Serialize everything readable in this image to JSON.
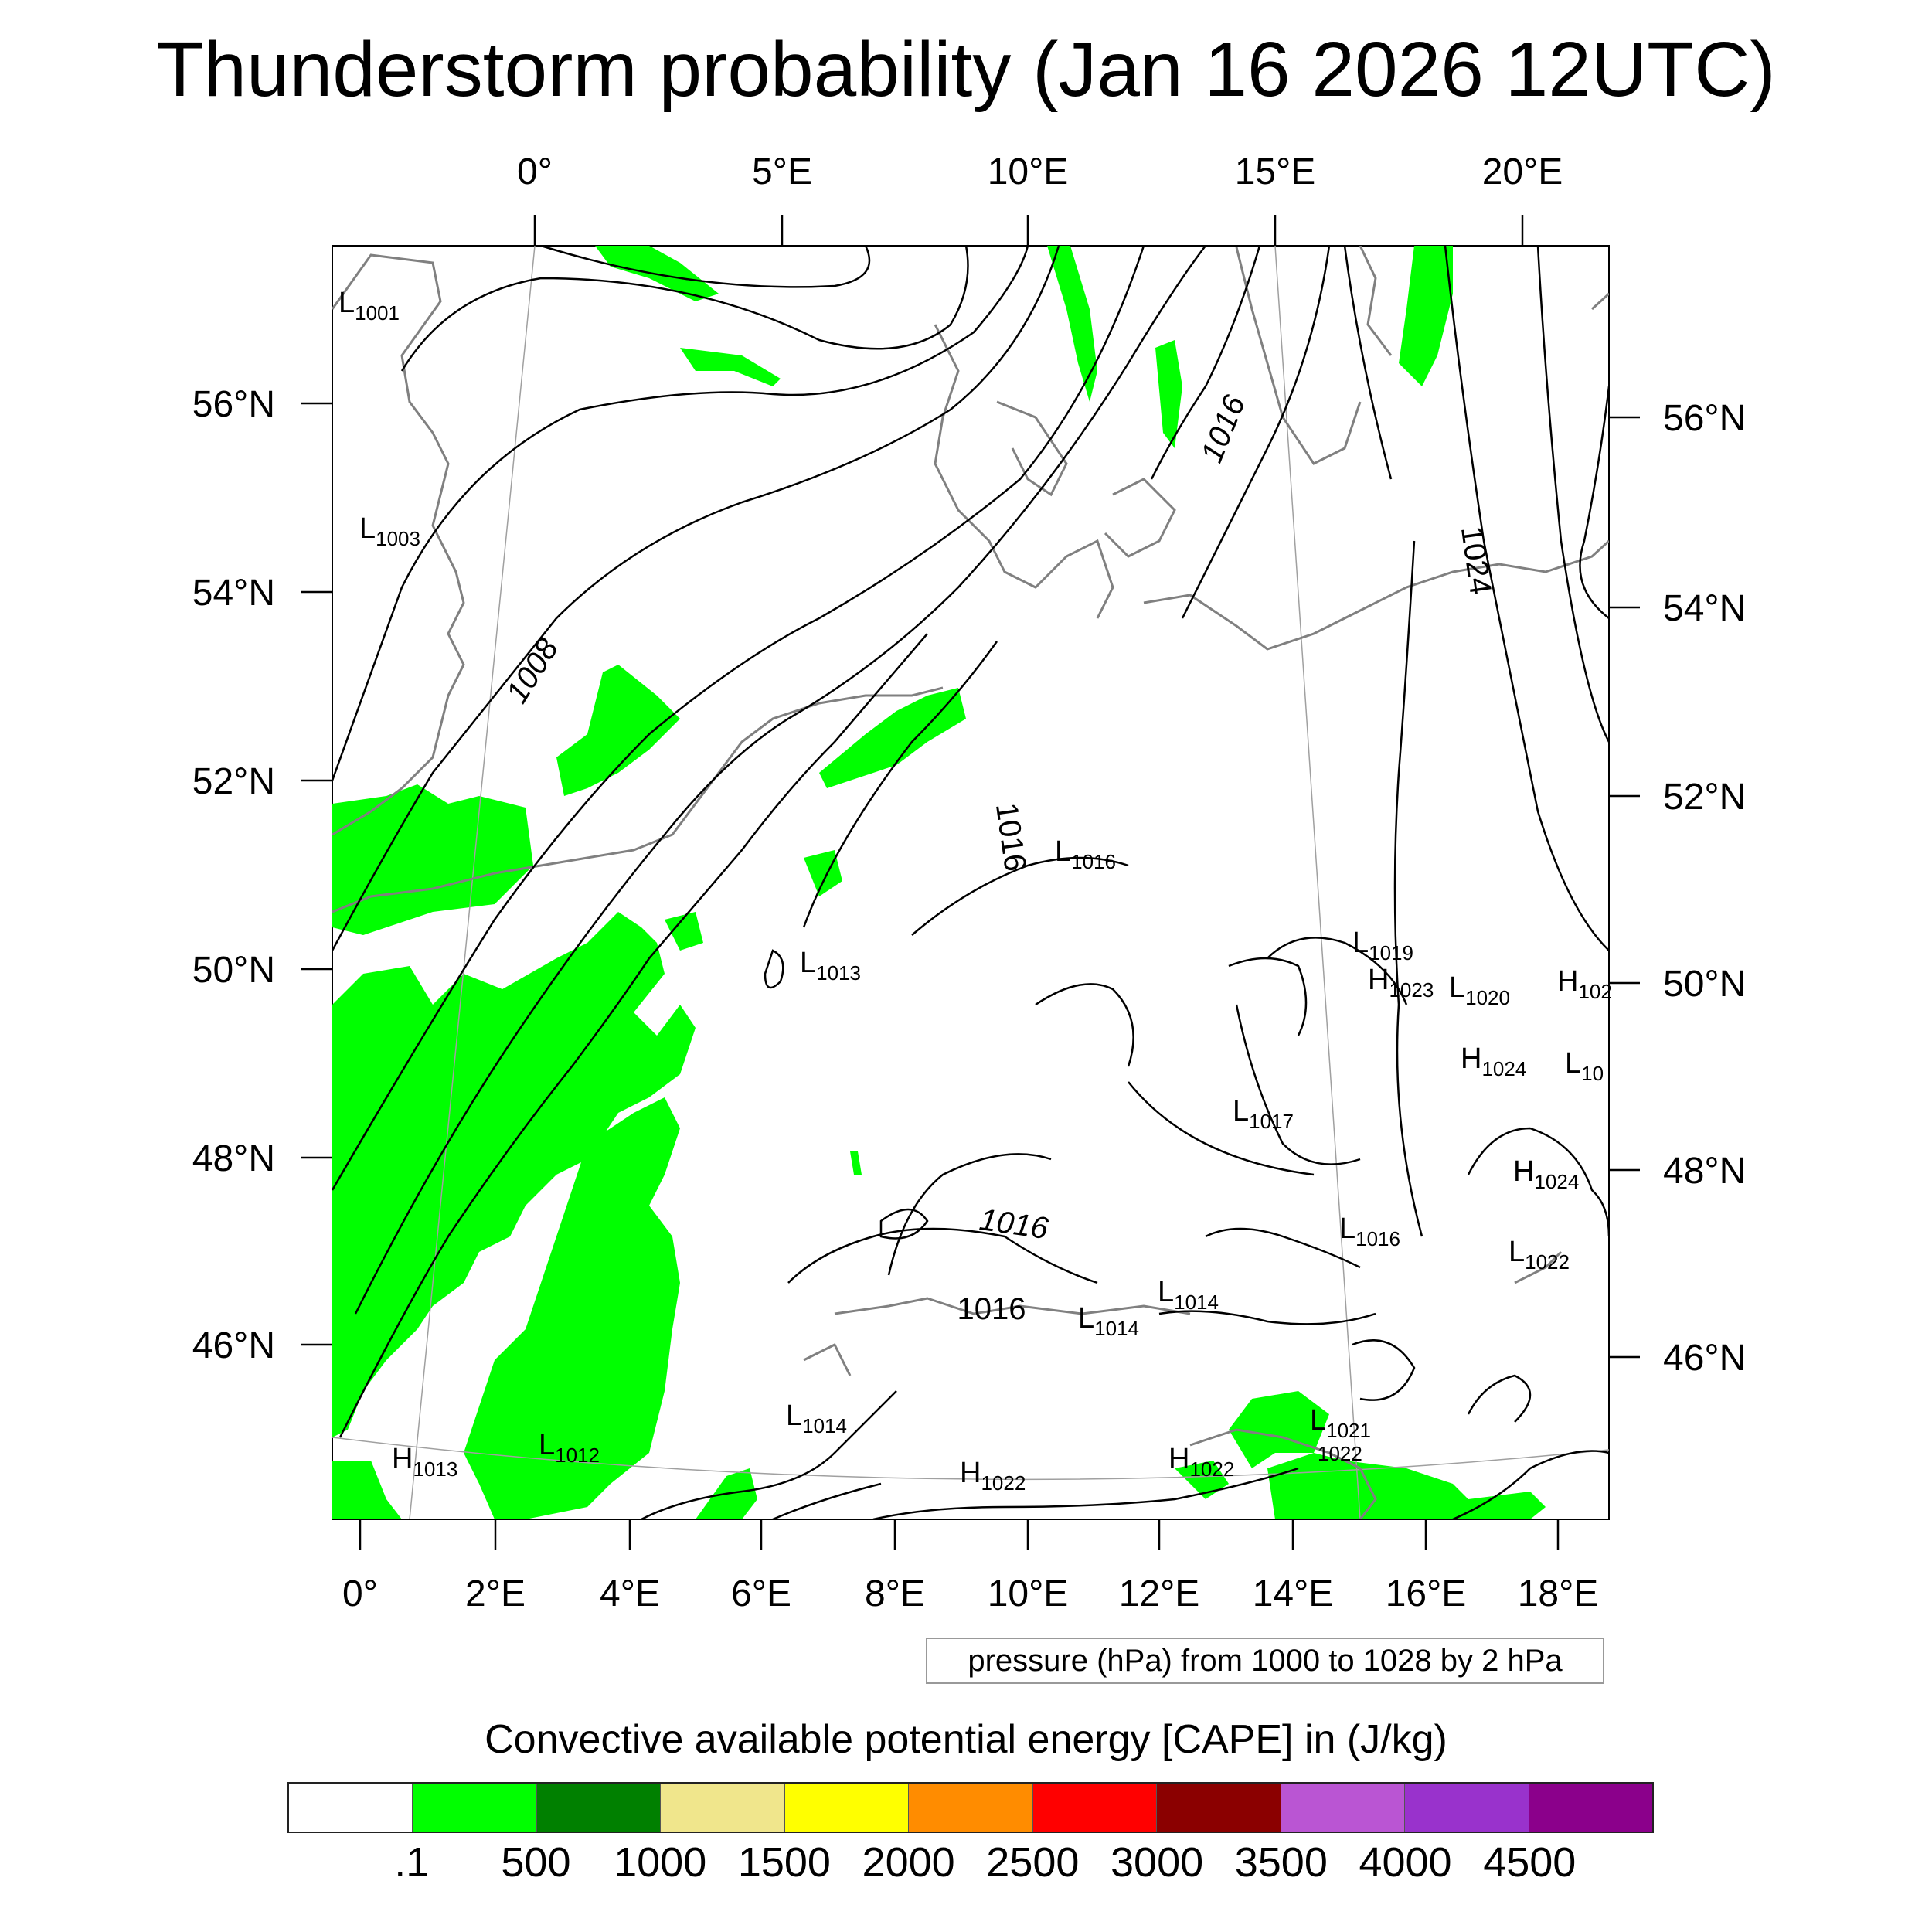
{
  "title": "Thunderstorm probability (Jan 16 2026 12UTC)",
  "map": {
    "top_lon_labels": [
      "0°",
      "5°E",
      "10°E",
      "15°E",
      "20°E"
    ],
    "left_lat_labels": [
      "56°N",
      "54°N",
      "52°N",
      "50°N",
      "48°N",
      "46°N"
    ],
    "right_lat_labels": [
      "56°N",
      "54°N",
      "52°N",
      "50°N",
      "48°N",
      "46°N"
    ],
    "bottom_lon_labels": [
      "0°",
      "2°E",
      "4°E",
      "6°E",
      "8°E",
      "10°E",
      "12°E",
      "14°E",
      "16°E",
      "18°E"
    ],
    "isobar_labels": [
      "1008",
      "1016",
      "1024",
      "1016",
      "1016",
      "1016"
    ],
    "pressure_centers": [
      {
        "type": "L",
        "value": "1001"
      },
      {
        "type": "L",
        "value": "1003"
      },
      {
        "type": "L",
        "value": "1016"
      },
      {
        "type": "L",
        "value": "1013"
      },
      {
        "type": "L",
        "value": "1019"
      },
      {
        "type": "H",
        "value": "1023"
      },
      {
        "type": "L",
        "value": "1020"
      },
      {
        "type": "H",
        "value": "102"
      },
      {
        "type": "H",
        "value": "1024"
      },
      {
        "type": "L",
        "value": "10"
      },
      {
        "type": "L",
        "value": "1017"
      },
      {
        "type": "H",
        "value": "1024"
      },
      {
        "type": "L",
        "value": "1016"
      },
      {
        "type": "L",
        "value": "1022"
      },
      {
        "type": "L",
        "value": "1014"
      },
      {
        "type": "L",
        "value": "1014"
      },
      {
        "type": "L",
        "value": "1014"
      },
      {
        "type": "L",
        "value": "1021"
      },
      {
        "type": "",
        "value": "1022"
      },
      {
        "type": "H",
        "value": "1022"
      },
      {
        "type": "H",
        "value": "1022"
      },
      {
        "type": "H",
        "value": "1013"
      },
      {
        "type": "L",
        "value": "1012"
      }
    ],
    "colors": {
      "cape_fill": "#00ff00",
      "isobar": "#000000",
      "coastline": "#808080",
      "grid": "#a0a0a0"
    }
  },
  "note": "pressure (hPa) from 1000 to 1028 by 2 hPa",
  "colorbar": {
    "title": "Convective available potential energy [CAPE] in (J/kg)",
    "colors": [
      "#ffffff",
      "#00ff00",
      "#008000",
      "#f0e68c",
      "#ffff00",
      "#ff8c00",
      "#ff0000",
      "#8b0000",
      "#ba55d3",
      "#9932cc",
      "#8b008b"
    ],
    "labels": [
      ".1",
      "500",
      "1000",
      "1500",
      "2000",
      "2500",
      "3000",
      "3500",
      "4000",
      "4500"
    ]
  }
}
